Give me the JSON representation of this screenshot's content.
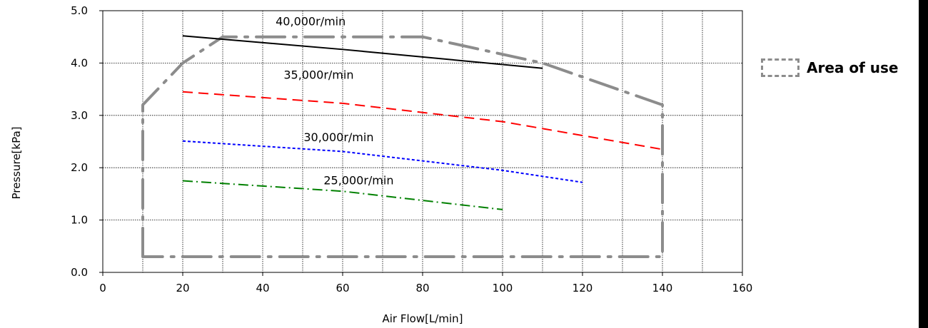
{
  "chart_data": {
    "type": "line",
    "title": "",
    "xlabel": "Air Flow[L/min]",
    "ylabel": "Pressure[kPa]",
    "xlim": [
      0,
      160
    ],
    "ylim": [
      0.0,
      5.0
    ],
    "x_ticks": [
      0,
      20,
      40,
      60,
      80,
      100,
      120,
      140,
      160
    ],
    "x_tick_labels": [
      "0",
      "20",
      "40",
      "60",
      "80",
      "100",
      "120",
      "140",
      "160"
    ],
    "y_ticks": [
      0,
      1,
      2,
      3,
      4,
      5
    ],
    "y_tick_labels": [
      "0.0",
      "1.0",
      "2.0",
      "3.0",
      "4.0",
      "5.0"
    ],
    "grid": true,
    "series": [
      {
        "name": "40,000r/min",
        "color": "#000000",
        "dash": "solid",
        "x": [
          20,
          60,
          110
        ],
        "y": [
          4.52,
          4.26,
          3.9
        ]
      },
      {
        "name": "35,000r/min",
        "color": "#ff0000",
        "dash": "long-dash",
        "x": [
          20,
          60,
          100,
          140
        ],
        "y": [
          3.45,
          3.23,
          2.88,
          2.35
        ]
      },
      {
        "name": "30,000r/min",
        "color": "#0000ff",
        "dash": "short-dash",
        "x": [
          20,
          60,
          100,
          120
        ],
        "y": [
          2.51,
          2.31,
          1.95,
          1.72
        ]
      },
      {
        "name": "25,000r/min",
        "color": "#008000",
        "dash": "dash-dot",
        "x": [
          20,
          60,
          100
        ],
        "y": [
          1.75,
          1.55,
          1.2
        ]
      }
    ],
    "area_of_use": {
      "name": "Area of use",
      "color": "#8c8c8c",
      "dash": "dash-dot",
      "x": [
        10,
        10,
        20,
        30,
        80,
        110,
        140,
        140,
        10
      ],
      "y": [
        0.3,
        3.2,
        4.0,
        4.5,
        4.5,
        4.0,
        3.2,
        0.3,
        0.3
      ]
    },
    "legend_position": "right"
  }
}
